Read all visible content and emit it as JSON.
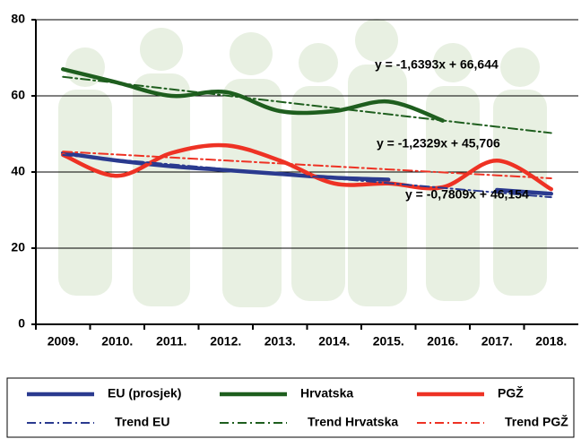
{
  "chart_data": {
    "type": "line",
    "categories": [
      "2009.",
      "2010.",
      "2011.",
      "2012.",
      "2013.",
      "2014.",
      "2015.",
      "2016.",
      "2017.",
      "2018."
    ],
    "ylim": [
      0,
      80
    ],
    "yticks": [
      0,
      20,
      40,
      60,
      80
    ],
    "grid": true,
    "series": [
      {
        "name": "EU (prosjek)",
        "color": "#2a3a8f",
        "style": "solid",
        "values": [
          45,
          43,
          41.5,
          40.5,
          39.5,
          38.5,
          38,
          null,
          35.3,
          34.3
        ]
      },
      {
        "name": "Hrvatska",
        "color": "#1e5e1e",
        "style": "solid",
        "values": [
          67,
          63.5,
          60,
          61,
          56,
          56,
          58.5,
          53.5,
          null,
          null
        ]
      },
      {
        "name": "PGŽ",
        "color": "#ee3224",
        "style": "solid",
        "values": [
          44.5,
          39,
          45,
          47,
          43,
          37,
          37,
          36,
          43,
          35.5
        ]
      },
      {
        "name": "Trend EU",
        "color": "#2a3a8f",
        "style": "dashdot",
        "values": [
          44.47,
          43.24,
          42.01,
          40.77,
          39.54,
          38.31,
          37.08,
          35.84,
          34.61,
          33.38
        ]
      },
      {
        "name": "Trend Hrvatska",
        "color": "#1e5e1e",
        "style": "dashdot",
        "values": [
          65.0,
          63.37,
          61.73,
          60.09,
          58.45,
          56.81,
          55.17,
          53.53,
          51.89,
          50.25
        ]
      },
      {
        "name": "Trend PGŽ",
        "color": "#ee3224",
        "style": "dashdot",
        "values": [
          45.37,
          44.59,
          43.81,
          43.03,
          42.25,
          41.47,
          40.69,
          39.91,
          39.13,
          38.35
        ]
      }
    ],
    "annotations": [
      {
        "text": "y = -1,6393x + 66,644",
        "color": "#1e5e1e"
      },
      {
        "text": "y = -1,2329x + 45,706",
        "color": "#2a3a8f"
      },
      {
        "text": "y = -0,7809x + 46,154",
        "color": "#ee3224"
      }
    ]
  }
}
